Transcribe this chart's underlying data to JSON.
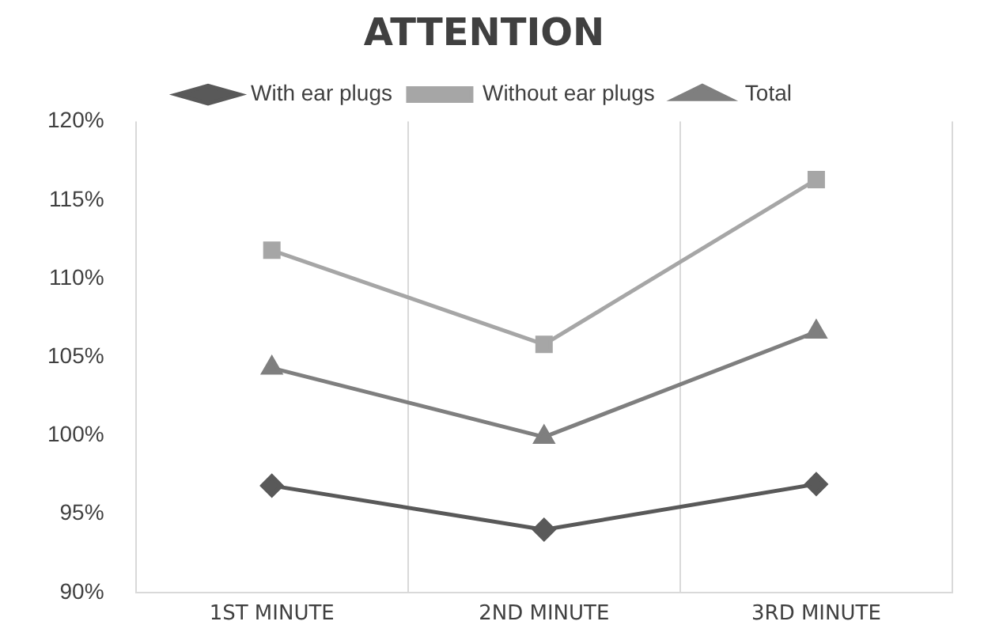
{
  "chart_data": {
    "type": "line",
    "title": "ATTENTION",
    "categories": [
      "1ST MINUTE",
      "2ND MINUTE",
      "3RD MINUTE"
    ],
    "series": [
      {
        "name": "With ear plugs",
        "color": "#595959",
        "marker": "diamond",
        "values": [
          96.8,
          94.0,
          96.9
        ]
      },
      {
        "name": "Without ear plugs",
        "color": "#a6a6a6",
        "marker": "square",
        "values": [
          111.8,
          105.8,
          116.3
        ]
      },
      {
        "name": "Total",
        "color": "#7f7f7f",
        "marker": "triangle",
        "values": [
          104.3,
          99.9,
          106.6
        ]
      }
    ],
    "ylim": [
      90,
      120
    ],
    "yticks": [
      {
        "value": 90,
        "label": "90%"
      },
      {
        "value": 95,
        "label": "95%"
      },
      {
        "value": 100,
        "label": "100%"
      },
      {
        "value": 105,
        "label": "105%"
      },
      {
        "value": 110,
        "label": "110%"
      },
      {
        "value": 115,
        "label": "115%"
      },
      {
        "value": 120,
        "label": "120%"
      }
    ],
    "grid": "x",
    "legend": "top",
    "line_style": "solid"
  }
}
